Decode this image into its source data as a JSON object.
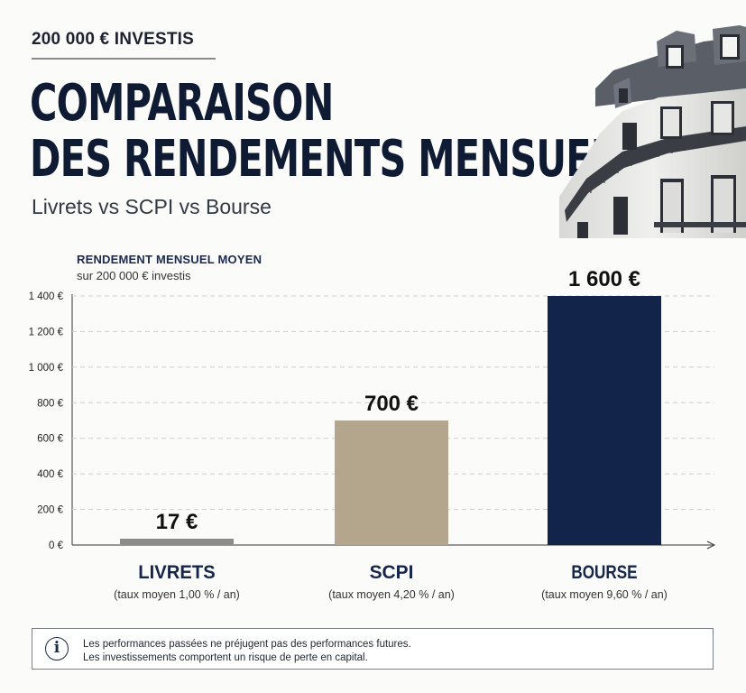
{
  "header": {
    "kicker": "200 000 € INVESTIS",
    "title_line1": "COMPARAISON",
    "title_line2": "DES RENDEMENTS MENSUELS",
    "subtitle": "Livrets vs SCPI vs Bourse"
  },
  "chart_header": {
    "title": "RENDEMENT MENSUEL MOYEN",
    "subtitle": "sur 200 000 € investis"
  },
  "chart_data": {
    "type": "bar",
    "categories": [
      "LIVRETS",
      "SCPI",
      "BOURSE"
    ],
    "category_notes": [
      "(taux moyen 1,00 % / an)",
      "(taux moyen 4,20 % / an)",
      "(taux moyen 9,60 % / an)"
    ],
    "values": [
      17,
      700,
      1600
    ],
    "data_labels": [
      "17 €",
      "700 €",
      "1 600 €"
    ],
    "bar_colors": [
      "#8c8c8c",
      "#b3a68c",
      "#13244b"
    ],
    "yticks": [
      0,
      200,
      400,
      600,
      800,
      1000,
      1200,
      1400
    ],
    "ytick_labels": [
      "0 €",
      "200 €",
      "400 €",
      "600 €",
      "800 €",
      "1 000 €",
      "1 200 €",
      "1 400 €"
    ],
    "ylim": [
      0,
      1400
    ],
    "grid": true,
    "title": "RENDEMENT MENSUEL MOYEN",
    "subtitle": "sur 200 000 € investis"
  },
  "disclaimer": {
    "icon": "info-icon",
    "line1": "Les performances passées ne préjugent pas des performances futures.",
    "line2": "Les investissements comportent un risque de perte en capital."
  },
  "illustration": "haussmann-building-photo"
}
